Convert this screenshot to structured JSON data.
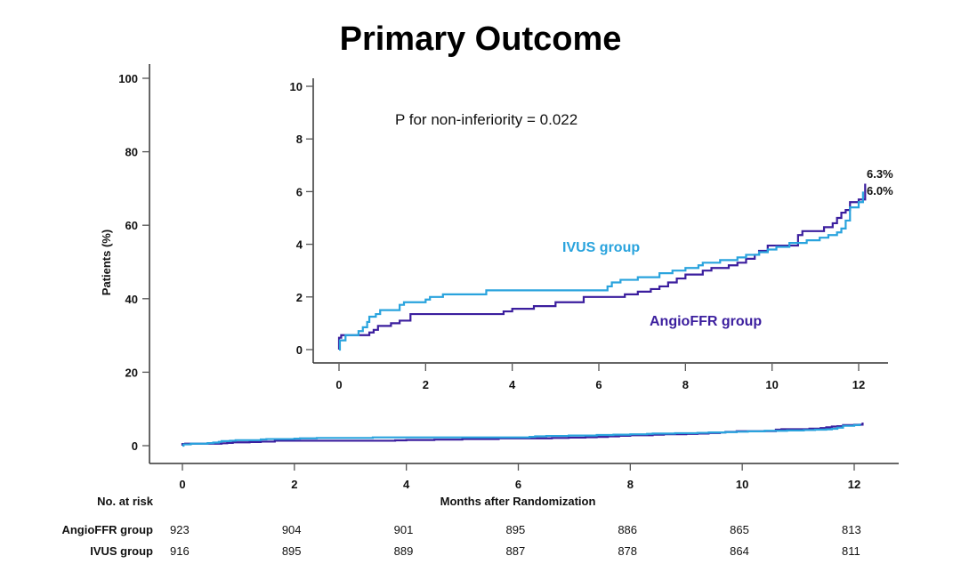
{
  "chart_data": [
    {
      "id": "main",
      "type": "line",
      "subtype": "kaplan-meier-step",
      "title": "Primary Outcome",
      "xlabel": "Months after Randomization",
      "ylabel": "Patients (%)",
      "xlim": [
        0,
        12
      ],
      "ylim": [
        0,
        100
      ],
      "xticks": [
        "0",
        "2",
        "4",
        "6",
        "8",
        "10",
        "12"
      ],
      "yticks": [
        "0",
        "20",
        "40",
        "60",
        "80",
        "100"
      ],
      "grid": false,
      "series_ref": [
        "AngioFFR group",
        "IVUS group"
      ]
    },
    {
      "id": "inset",
      "type": "line",
      "subtype": "kaplan-meier-step",
      "xlim": [
        0,
        12
      ],
      "ylim": [
        0,
        10
      ],
      "xticks": [
        "0",
        "2",
        "4",
        "6",
        "8",
        "10",
        "12"
      ],
      "yticks": [
        "0",
        "2",
        "4",
        "6",
        "8",
        "10"
      ],
      "grid": false,
      "annotation": "P for non-inferiority = 0.022",
      "end_labels": [
        "6.3%",
        "6.0%"
      ],
      "series": [
        {
          "name": "IVUS group",
          "label": "IVUS group",
          "color": "#29a3dd",
          "end_value": 6.0,
          "x": [
            0,
            0.02,
            0.15,
            0.45,
            0.55,
            0.65,
            0.7,
            0.85,
            0.95,
            1.4,
            1.5,
            2.0,
            2.1,
            2.4,
            3.4,
            6.2,
            6.3,
            6.5,
            6.9,
            7.4,
            7.7,
            8.0,
            8.3,
            8.4,
            8.8,
            9.2,
            9.4,
            9.7,
            9.9,
            10.1,
            10.4,
            10.8,
            11.1,
            11.3,
            11.5,
            11.6,
            11.7,
            11.8,
            12.0,
            12.1
          ],
          "y": [
            0,
            0.35,
            0.55,
            0.7,
            0.85,
            1.05,
            1.25,
            1.35,
            1.5,
            1.7,
            1.8,
            1.9,
            2.0,
            2.1,
            2.25,
            2.4,
            2.55,
            2.65,
            2.75,
            2.9,
            3.0,
            3.1,
            3.2,
            3.3,
            3.4,
            3.5,
            3.6,
            3.7,
            3.8,
            3.9,
            4.05,
            4.15,
            4.25,
            4.35,
            4.45,
            4.6,
            4.9,
            5.4,
            5.6,
            6.0
          ]
        },
        {
          "name": "AngioFFR group",
          "label": "AngioFFR group",
          "color": "#3b1e9e",
          "end_value": 6.3,
          "x": [
            0,
            0.05,
            0.7,
            0.8,
            0.9,
            1.2,
            1.4,
            1.65,
            3.8,
            4.0,
            4.5,
            5.0,
            5.65,
            6.6,
            6.9,
            7.2,
            7.4,
            7.6,
            7.8,
            8.0,
            8.4,
            8.6,
            9.0,
            9.2,
            9.4,
            9.6,
            9.7,
            9.9,
            10.6,
            10.7,
            11.2,
            11.4,
            11.5,
            11.6,
            11.7,
            11.8,
            12.0,
            12.15
          ],
          "y": [
            0.45,
            0.55,
            0.65,
            0.75,
            0.9,
            1.0,
            1.1,
            1.35,
            1.45,
            1.55,
            1.65,
            1.8,
            2.0,
            2.1,
            2.2,
            2.3,
            2.4,
            2.55,
            2.7,
            2.85,
            3.0,
            3.1,
            3.2,
            3.3,
            3.45,
            3.6,
            3.75,
            3.95,
            4.35,
            4.5,
            4.65,
            4.8,
            5.0,
            5.2,
            5.3,
            5.6,
            5.7,
            6.3
          ]
        }
      ]
    }
  ],
  "risk_table": {
    "header": "No. at risk",
    "timepoints": [
      0,
      2,
      4,
      6,
      8,
      10,
      12
    ],
    "rows": [
      {
        "label": "AngioFFR group",
        "values": [
          "923",
          "904",
          "901",
          "895",
          "886",
          "865",
          "813"
        ]
      },
      {
        "label": "IVUS group",
        "values": [
          "916",
          "895",
          "889",
          "887",
          "878",
          "864",
          "811"
        ]
      }
    ]
  }
}
